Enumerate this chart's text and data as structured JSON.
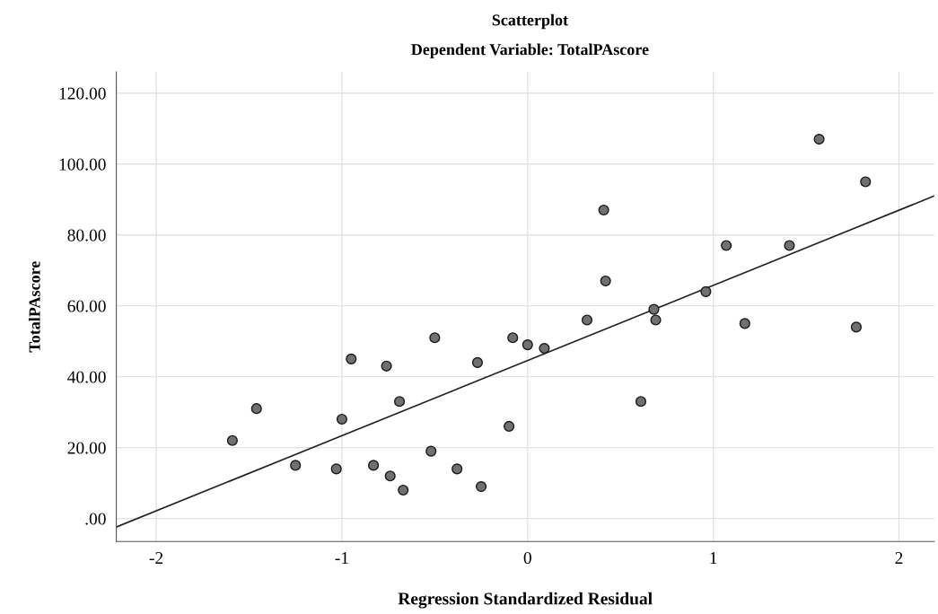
{
  "chart_data": {
    "type": "scatter",
    "title": "Scatterplot",
    "subtitle": "Dependent Variable: TotalPAscore",
    "xlabel": "Regression Standardized Residual",
    "ylabel": "TotalPAscore",
    "xlim": [
      -2.215,
      2.19
    ],
    "ylim": [
      -6.5,
      126
    ],
    "xticks": [
      -2,
      -1,
      0,
      1,
      2
    ],
    "yticks": [
      {
        "value": 0,
        "label": ".00"
      },
      {
        "value": 20,
        "label": "20.00"
      },
      {
        "value": 40,
        "label": "40.00"
      },
      {
        "value": 60,
        "label": "60.00"
      },
      {
        "value": 80,
        "label": "80.00"
      },
      {
        "value": 100,
        "label": "100.00"
      },
      {
        "value": 120,
        "label": "120.00"
      }
    ],
    "grid": true,
    "marker": "circle",
    "series": [
      {
        "color": "#707070",
        "x": [
          -1.59,
          -1.46,
          -1.25,
          -1.03,
          -1.0,
          -0.95,
          -0.83,
          -0.76,
          -0.74,
          -0.69,
          -0.67,
          -0.52,
          -0.5,
          -0.38,
          -0.27,
          -0.25,
          -0.1,
          -0.08,
          0.0,
          0.09,
          0.32,
          0.41,
          0.42,
          0.61,
          0.68,
          0.69,
          0.96,
          1.07,
          1.17,
          1.41,
          1.57,
          1.77,
          1.82
        ],
        "values": [
          22,
          31,
          15,
          14,
          28,
          45,
          15,
          43,
          12,
          33,
          8,
          19,
          51,
          14,
          44,
          9,
          26,
          51,
          49,
          48,
          56,
          87,
          67,
          33,
          59,
          56,
          64,
          77,
          55,
          77,
          107,
          54,
          95
        ]
      },
      {
        "type": "line",
        "color": "#222222",
        "marker": "none",
        "x": [
          -2.215,
          2.19
        ],
        "values": [
          -2.4,
          91.0
        ]
      }
    ]
  }
}
